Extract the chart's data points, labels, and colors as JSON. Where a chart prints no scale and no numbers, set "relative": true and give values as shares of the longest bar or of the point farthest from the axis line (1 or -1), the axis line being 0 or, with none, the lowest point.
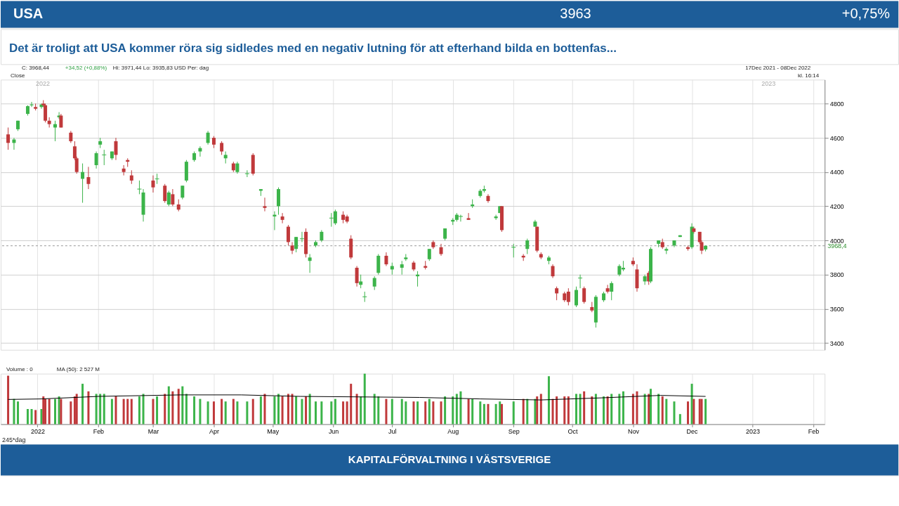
{
  "chart_data": [
    {
      "type": "candlestick",
      "title": "USA",
      "subtitle": "Det är troligt att USA kommer röra sig sidledes med en negativ lutning för att efterhand bilda en bottenfas...",
      "annotations": [
        "3963",
        "+0,75%",
        "C: 3968,44",
        "+34,52 (+0,88%)",
        "Hi: 3971,44  Lo: 3935,83  USD   Per: dag",
        "Close",
        "17Dec 2021 - 08Dec 2022",
        "kl. 16:14",
        "2022",
        "2023"
      ],
      "x": [
        "2021-12-17",
        "2021-12-20",
        "2021-12-22",
        "2021-12-27",
        "2021-12-29",
        "2021-12-31",
        "2022-01-03",
        "2022-01-04",
        "2022-01-05",
        "2022-01-07",
        "2022-01-10",
        "2022-01-12",
        "2022-01-13",
        "2022-01-18",
        "2022-01-20",
        "2022-01-21",
        "2022-01-24",
        "2022-01-27",
        "2022-01-31",
        "2022-02-02",
        "2022-02-04",
        "2022-02-08",
        "2022-02-10",
        "2022-02-14",
        "2022-02-16",
        "2022-02-18",
        "2022-02-22",
        "2022-02-24",
        "2022-03-01",
        "2022-03-03",
        "2022-03-07",
        "2022-03-09",
        "2022-03-11",
        "2022-03-14",
        "2022-03-16",
        "2022-03-18",
        "2022-03-22",
        "2022-03-25",
        "2022-03-29",
        "2022-04-01",
        "2022-04-05",
        "2022-04-07",
        "2022-04-11",
        "2022-04-13",
        "2022-04-18",
        "2022-04-21",
        "2022-04-25",
        "2022-04-27",
        "2022-05-02",
        "2022-05-04",
        "2022-05-06",
        "2022-05-09",
        "2022-05-11",
        "2022-05-13",
        "2022-05-16",
        "2022-05-18",
        "2022-05-20",
        "2022-05-23",
        "2022-05-26",
        "2022-05-31",
        "2022-06-02",
        "2022-06-06",
        "2022-06-08",
        "2022-06-10",
        "2022-06-13",
        "2022-06-15",
        "2022-06-17",
        "2022-06-22",
        "2022-06-24",
        "2022-06-28",
        "2022-07-01",
        "2022-07-06",
        "2022-07-08",
        "2022-07-12",
        "2022-07-14",
        "2022-07-18",
        "2022-07-20",
        "2022-07-22",
        "2022-07-26",
        "2022-07-28",
        "2022-08-01",
        "2022-08-03",
        "2022-08-05",
        "2022-08-09",
        "2022-08-11",
        "2022-08-15",
        "2022-08-17",
        "2022-08-19",
        "2022-08-23",
        "2022-08-25",
        "2022-08-26",
        "2022-09-01",
        "2022-09-06",
        "2022-09-08",
        "2022-09-12",
        "2022-09-13",
        "2022-09-15",
        "2022-09-19",
        "2022-09-21",
        "2022-09-23",
        "2022-09-27",
        "2022-09-29",
        "2022-10-03",
        "2022-10-05",
        "2022-10-07",
        "2022-10-11",
        "2022-10-13",
        "2022-10-17",
        "2022-10-19",
        "2022-10-21",
        "2022-10-25",
        "2022-10-27",
        "2022-11-01",
        "2022-11-03",
        "2022-11-07",
        "2022-11-09",
        "2022-11-10",
        "2022-11-14",
        "2022-11-16",
        "2022-11-18",
        "2022-11-22",
        "2022-11-25",
        "2022-11-29",
        "2022-12-01",
        "2022-12-02",
        "2022-12-05",
        "2022-12-06",
        "2022-12-08"
      ],
      "ohlc": [
        [
          4620,
          4660,
          4530,
          4570
        ],
        [
          4570,
          4600,
          4530,
          4590
        ],
        [
          4650,
          4700,
          4640,
          4700
        ],
        [
          4740,
          4790,
          4730,
          4785
        ],
        [
          4790,
          4810,
          4780,
          4795
        ],
        [
          4780,
          4800,
          4760,
          4770
        ],
        [
          4780,
          4800,
          4770,
          4795
        ],
        [
          4800,
          4820,
          4780,
          4790
        ],
        [
          4790,
          4800,
          4690,
          4700
        ],
        [
          4700,
          4720,
          4660,
          4680
        ],
        [
          4660,
          4700,
          4580,
          4680
        ],
        [
          4720,
          4750,
          4710,
          4730
        ],
        [
          4730,
          4740,
          4660,
          4660
        ],
        [
          4630,
          4640,
          4570,
          4580
        ],
        [
          4550,
          4580,
          4470,
          4480
        ],
        [
          4480,
          4490,
          4390,
          4400
        ],
        [
          4360,
          4450,
          4220,
          4400
        ],
        [
          4370,
          4430,
          4300,
          4330
        ],
        [
          4440,
          4520,
          4420,
          4510
        ],
        [
          4560,
          4600,
          4540,
          4580
        ],
        [
          4500,
          4530,
          4440,
          4500
        ],
        [
          4480,
          4520,
          4470,
          4520
        ],
        [
          4580,
          4600,
          4470,
          4500
        ],
        [
          4420,
          4440,
          4380,
          4400
        ],
        [
          4470,
          4480,
          4430,
          4460
        ],
        [
          4380,
          4410,
          4330,
          4350
        ],
        [
          4300,
          4350,
          4270,
          4300
        ],
        [
          4150,
          4300,
          4110,
          4280
        ],
        [
          4350,
          4380,
          4280,
          4310
        ],
        [
          4360,
          4390,
          4330,
          4360
        ],
        [
          4320,
          4330,
          4220,
          4230
        ],
        [
          4210,
          4290,
          4200,
          4280
        ],
        [
          4270,
          4300,
          4200,
          4210
        ],
        [
          4210,
          4240,
          4170,
          4180
        ],
        [
          4250,
          4320,
          4240,
          4320
        ],
        [
          4350,
          4470,
          4340,
          4460
        ],
        [
          4470,
          4520,
          4460,
          4510
        ],
        [
          4520,
          4550,
          4490,
          4540
        ],
        [
          4570,
          4640,
          4560,
          4630
        ],
        [
          4600,
          4610,
          4540,
          4560
        ],
        [
          4570,
          4580,
          4500,
          4520
        ],
        [
          4480,
          4520,
          4450,
          4500
        ],
        [
          4450,
          4460,
          4400,
          4410
        ],
        [
          4400,
          4460,
          4390,
          4450
        ],
        [
          4390,
          4410,
          4370,
          4390
        ],
        [
          4500,
          4510,
          4380,
          4390
        ],
        [
          4290,
          4300,
          4260,
          4300
        ],
        [
          4200,
          4250,
          4170,
          4190
        ],
        [
          4140,
          4170,
          4060,
          4150
        ],
        [
          4200,
          4310,
          4150,
          4300
        ],
        [
          4140,
          4160,
          4100,
          4120
        ],
        [
          4080,
          4090,
          3970,
          3990
        ],
        [
          3970,
          3990,
          3920,
          3940
        ],
        [
          3950,
          4020,
          3930,
          4020
        ],
        [
          4010,
          4050,
          3990,
          4010
        ],
        [
          4050,
          4070,
          3900,
          3920
        ],
        [
          3880,
          3920,
          3810,
          3900
        ],
        [
          3970,
          4000,
          3960,
          3990
        ],
        [
          4000,
          4060,
          3990,
          4050
        ],
        [
          4130,
          4160,
          4080,
          4130
        ],
        [
          4100,
          4180,
          4090,
          4170
        ],
        [
          4150,
          4170,
          4100,
          4120
        ],
        [
          4140,
          4150,
          4100,
          4110
        ],
        [
          4010,
          4030,
          3890,
          3900
        ],
        [
          3840,
          3850,
          3730,
          3750
        ],
        [
          3740,
          3800,
          3720,
          3760
        ],
        [
          3670,
          3700,
          3640,
          3670
        ],
        [
          3730,
          3790,
          3710,
          3780
        ],
        [
          3810,
          3920,
          3800,
          3910
        ],
        [
          3910,
          3930,
          3850,
          3860
        ],
        [
          3830,
          3870,
          3800,
          3850
        ],
        [
          3840,
          3880,
          3800,
          3860
        ],
        [
          3890,
          3920,
          3880,
          3900
        ],
        [
          3870,
          3880,
          3820,
          3830
        ],
        [
          3790,
          3820,
          3730,
          3800
        ],
        [
          3850,
          3880,
          3830,
          3840
        ],
        [
          3890,
          3950,
          3880,
          3950
        ],
        [
          3990,
          4000,
          3950,
          3960
        ],
        [
          3960,
          3980,
          3910,
          3920
        ],
        [
          4010,
          4070,
          4000,
          4070
        ],
        [
          4110,
          4130,
          4090,
          4120
        ],
        [
          4120,
          4160,
          4110,
          4150
        ],
        [
          4140,
          4150,
          4110,
          4140
        ],
        [
          4130,
          4160,
          4120,
          4120
        ],
        [
          4200,
          4240,
          4190,
          4210
        ],
        [
          4260,
          4300,
          4250,
          4290
        ],
        [
          4290,
          4320,
          4280,
          4300
        ],
        [
          4260,
          4270,
          4220,
          4230
        ],
        [
          4130,
          4150,
          4120,
          4140
        ],
        [
          4160,
          4200,
          4160,
          4200
        ],
        [
          4200,
          4200,
          4050,
          4060
        ],
        [
          3960,
          3980,
          3900,
          3960
        ],
        [
          3910,
          3920,
          3880,
          3900
        ],
        [
          3950,
          4010,
          3920,
          4000
        ],
        [
          4080,
          4120,
          4080,
          4110
        ],
        [
          4080,
          4080,
          3930,
          3940
        ],
        [
          3920,
          3930,
          3890,
          3900
        ],
        [
          3880,
          3910,
          3860,
          3900
        ],
        [
          3850,
          3860,
          3780,
          3790
        ],
        [
          3720,
          3730,
          3650,
          3690
        ],
        [
          3690,
          3700,
          3640,
          3650
        ],
        [
          3700,
          3720,
          3620,
          3640
        ],
        [
          3620,
          3730,
          3610,
          3710
        ],
        [
          3780,
          3800,
          3720,
          3780
        ],
        [
          3720,
          3730,
          3630,
          3640
        ],
        [
          3610,
          3640,
          3580,
          3590
        ],
        [
          3520,
          3680,
          3490,
          3670
        ],
        [
          3650,
          3700,
          3640,
          3690
        ],
        [
          3720,
          3740,
          3690,
          3700
        ],
        [
          3700,
          3760,
          3650,
          3750
        ],
        [
          3800,
          3860,
          3790,
          3850
        ],
        [
          3830,
          3880,
          3820,
          3840
        ],
        [
          3880,
          3900,
          3850,
          3860
        ],
        [
          3830,
          3860,
          3700,
          3720
        ],
        [
          3760,
          3800,
          3740,
          3790
        ],
        [
          3810,
          3820,
          3740,
          3760
        ],
        [
          3760,
          3960,
          3750,
          3950
        ],
        [
          3980,
          4000,
          3960,
          4000
        ],
        [
          3990,
          4010,
          3950,
          3960
        ],
        [
          3940,
          3960,
          3920,
          3950
        ],
        [
          3970,
          4000,
          3960,
          4000
        ],
        [
          4020,
          4030,
          4020,
          4030
        ],
        [
          3960,
          3970,
          3940,
          3950
        ],
        [
          3960,
          4100,
          3950,
          4080
        ],
        [
          4070,
          4080,
          4040,
          4050
        ],
        [
          4050,
          4050,
          3980,
          3990
        ],
        [
          3990,
          4000,
          3920,
          3940
        ],
        [
          3947,
          3971.44,
          3935.83,
          3968.44
        ]
      ],
      "colors": [
        "#c0393b",
        "#3cb44a",
        "#3cb44a",
        "#3cb44a",
        "#3cb44a",
        "#c0393b",
        "#3cb44a",
        "#c0393b",
        "#c0393b",
        "#c0393b",
        "#3cb44a",
        "#3cb44a",
        "#c0393b",
        "#c0393b",
        "#c0393b",
        "#c0393b",
        "#3cb44a",
        "#c0393b",
        "#3cb44a",
        "#3cb44a",
        "#3cb44a",
        "#3cb44a",
        "#c0393b",
        "#c0393b",
        "#c0393b",
        "#c0393b",
        "#3cb44a",
        "#3cb44a",
        "#c0393b",
        "#3cb44a",
        "#c0393b",
        "#3cb44a",
        "#c0393b",
        "#c0393b",
        "#3cb44a",
        "#3cb44a",
        "#3cb44a",
        "#3cb44a",
        "#3cb44a",
        "#c0393b",
        "#c0393b",
        "#3cb44a",
        "#c0393b",
        "#3cb44a",
        "#3cb44a",
        "#c0393b",
        "#3cb44a",
        "#c0393b",
        "#3cb44a",
        "#3cb44a",
        "#c0393b",
        "#c0393b",
        "#c0393b",
        "#3cb44a",
        "#3cb44a",
        "#c0393b",
        "#3cb44a",
        "#3cb44a",
        "#3cb44a",
        "#3cb44a",
        "#3cb44a",
        "#c0393b",
        "#c0393b",
        "#c0393b",
        "#c0393b",
        "#3cb44a",
        "#3cb44a",
        "#3cb44a",
        "#3cb44a",
        "#c0393b",
        "#3cb44a",
        "#3cb44a",
        "#3cb44a",
        "#c0393b",
        "#3cb44a",
        "#c0393b",
        "#3cb44a",
        "#c0393b",
        "#c0393b",
        "#3cb44a",
        "#3cb44a",
        "#3cb44a",
        "#3cb44a",
        "#c0393b",
        "#3cb44a",
        "#3cb44a",
        "#3cb44a",
        "#c0393b",
        "#3cb44a",
        "#3cb44a",
        "#c0393b",
        "#3cb44a",
        "#c0393b",
        "#3cb44a",
        "#3cb44a",
        "#c0393b",
        "#c0393b",
        "#3cb44a",
        "#c0393b",
        "#c0393b",
        "#c0393b",
        "#c0393b",
        "#3cb44a",
        "#3cb44a",
        "#c0393b",
        "#c0393b",
        "#3cb44a",
        "#3cb44a",
        "#c0393b",
        "#3cb44a",
        "#3cb44a",
        "#3cb44a",
        "#c0393b",
        "#c0393b",
        "#3cb44a",
        "#c0393b",
        "#3cb44a",
        "#3cb44a",
        "#c0393b",
        "#3cb44a",
        "#3cb44a",
        "#3cb44a",
        "#c0393b",
        "#3cb44a",
        "#c0393b",
        "#c0393b",
        "#c0393b",
        "#3cb44a"
      ],
      "xlim": [
        "2021-12-15",
        "2023-02-05"
      ],
      "xticks": [
        {
          "value": "2022-01-01",
          "label": null
        },
        {
          "value": "2022-02-01",
          "label": null
        },
        {
          "value": "2022-03-01",
          "label": null
        },
        {
          "value": "2022-04-01",
          "label": null
        },
        {
          "value": "2022-05-01",
          "label": null
        },
        {
          "value": "2022-06-01",
          "label": null
        },
        {
          "value": "2022-07-01",
          "label": null
        },
        {
          "value": "2022-08-01",
          "label": null
        },
        {
          "value": "2022-09-01",
          "label": null
        },
        {
          "value": "2022-10-01",
          "label": null
        },
        {
          "value": "2022-11-01",
          "label": null
        },
        {
          "value": "2022-12-01",
          "label": null
        },
        {
          "value": "2023-01-01",
          "label": null
        },
        {
          "value": "2023-02-01",
          "label": null
        }
      ],
      "ylim": [
        3360,
        4940
      ],
      "yticks": [
        3400,
        3600,
        3800,
        4000,
        4200,
        4400,
        4600,
        4800
      ],
      "tick_labels": "y",
      "grid": true,
      "ref_lines": [
        {
          "axis": "y",
          "value": 3968.4,
          "label": "3968,4",
          "color": "#999999",
          "line_style": "dashed"
        }
      ]
    },
    {
      "type": "bar",
      "relative": true,
      "tick_labels": "x",
      "grid": "x",
      "annotations": [
        "Volume : 0",
        "MA (50): 2 527 M",
        "245*dag",
        "KAPITALFÖRVALTNING I VÄSTSVERIGE"
      ],
      "x": [
        "2021-12-17",
        "2021-12-20",
        "2021-12-22",
        "2021-12-27",
        "2021-12-29",
        "2021-12-31",
        "2022-01-03",
        "2022-01-04",
        "2022-01-05",
        "2022-01-07",
        "2022-01-10",
        "2022-01-12",
        "2022-01-13",
        "2022-01-18",
        "2022-01-20",
        "2022-01-21",
        "2022-01-24",
        "2022-01-27",
        "2022-01-31",
        "2022-02-02",
        "2022-02-04",
        "2022-02-08",
        "2022-02-10",
        "2022-02-14",
        "2022-02-16",
        "2022-02-18",
        "2022-02-22",
        "2022-02-24",
        "2022-03-01",
        "2022-03-03",
        "2022-03-07",
        "2022-03-09",
        "2022-03-11",
        "2022-03-14",
        "2022-03-16",
        "2022-03-18",
        "2022-03-22",
        "2022-03-25",
        "2022-03-29",
        "2022-04-01",
        "2022-04-05",
        "2022-04-07",
        "2022-04-11",
        "2022-04-13",
        "2022-04-18",
        "2022-04-21",
        "2022-04-25",
        "2022-04-27",
        "2022-05-02",
        "2022-05-04",
        "2022-05-06",
        "2022-05-09",
        "2022-05-11",
        "2022-05-13",
        "2022-05-16",
        "2022-05-18",
        "2022-05-20",
        "2022-05-23",
        "2022-05-26",
        "2022-05-31",
        "2022-06-02",
        "2022-06-06",
        "2022-06-08",
        "2022-06-10",
        "2022-06-13",
        "2022-06-15",
        "2022-06-17",
        "2022-06-22",
        "2022-06-24",
        "2022-06-28",
        "2022-07-01",
        "2022-07-06",
        "2022-07-08",
        "2022-07-12",
        "2022-07-14",
        "2022-07-18",
        "2022-07-20",
        "2022-07-22",
        "2022-07-26",
        "2022-07-28",
        "2022-08-01",
        "2022-08-03",
        "2022-08-05",
        "2022-08-09",
        "2022-08-11",
        "2022-08-15",
        "2022-08-17",
        "2022-08-19",
        "2022-08-23",
        "2022-08-25",
        "2022-08-26",
        "2022-09-01",
        "2022-09-06",
        "2022-09-08",
        "2022-09-12",
        "2022-09-13",
        "2022-09-15",
        "2022-09-19",
        "2022-09-21",
        "2022-09-23",
        "2022-09-27",
        "2022-09-29",
        "2022-10-03",
        "2022-10-05",
        "2022-10-07",
        "2022-10-11",
        "2022-10-13",
        "2022-10-17",
        "2022-10-19",
        "2022-10-21",
        "2022-10-25",
        "2022-10-27",
        "2022-11-01",
        "2022-11-03",
        "2022-11-07",
        "2022-11-09",
        "2022-11-10",
        "2022-11-14",
        "2022-11-16",
        "2022-11-18",
        "2022-11-22",
        "2022-11-25",
        "2022-11-29",
        "2022-12-01",
        "2022-12-02",
        "2022-12-05",
        "2022-12-06",
        "2022-12-08"
      ],
      "series": [
        {
          "type": "bar",
          "colors": [
            "#c0393b",
            "#3cb44a",
            "#3cb44a",
            "#3cb44a",
            "#3cb44a",
            "#c0393b",
            "#3cb44a",
            "#c0393b",
            "#c0393b",
            "#c0393b",
            "#3cb44a",
            "#3cb44a",
            "#c0393b",
            "#c0393b",
            "#c0393b",
            "#c0393b",
            "#3cb44a",
            "#c0393b",
            "#3cb44a",
            "#3cb44a",
            "#3cb44a",
            "#3cb44a",
            "#c0393b",
            "#c0393b",
            "#c0393b",
            "#c0393b",
            "#3cb44a",
            "#3cb44a",
            "#c0393b",
            "#3cb44a",
            "#c0393b",
            "#3cb44a",
            "#c0393b",
            "#c0393b",
            "#3cb44a",
            "#3cb44a",
            "#3cb44a",
            "#3cb44a",
            "#3cb44a",
            "#c0393b",
            "#c0393b",
            "#3cb44a",
            "#c0393b",
            "#3cb44a",
            "#3cb44a",
            "#c0393b",
            "#3cb44a",
            "#c0393b",
            "#3cb44a",
            "#3cb44a",
            "#c0393b",
            "#c0393b",
            "#c0393b",
            "#3cb44a",
            "#3cb44a",
            "#c0393b",
            "#3cb44a",
            "#3cb44a",
            "#3cb44a",
            "#3cb44a",
            "#3cb44a",
            "#c0393b",
            "#c0393b",
            "#c0393b",
            "#c0393b",
            "#3cb44a",
            "#3cb44a",
            "#3cb44a",
            "#3cb44a",
            "#c0393b",
            "#3cb44a",
            "#3cb44a",
            "#3cb44a",
            "#c0393b",
            "#3cb44a",
            "#c0393b",
            "#3cb44a",
            "#c0393b",
            "#c0393b",
            "#3cb44a",
            "#3cb44a",
            "#3cb44a",
            "#3cb44a",
            "#c0393b",
            "#3cb44a",
            "#3cb44a",
            "#3cb44a",
            "#c0393b",
            "#3cb44a",
            "#3cb44a",
            "#c0393b",
            "#3cb44a",
            "#c0393b",
            "#3cb44a",
            "#3cb44a",
            "#c0393b",
            "#c0393b",
            "#3cb44a",
            "#c0393b",
            "#c0393b",
            "#c0393b",
            "#c0393b",
            "#3cb44a",
            "#3cb44a",
            "#c0393b",
            "#c0393b",
            "#3cb44a",
            "#3cb44a",
            "#c0393b",
            "#3cb44a",
            "#3cb44a",
            "#3cb44a",
            "#c0393b",
            "#c0393b",
            "#3cb44a",
            "#c0393b",
            "#3cb44a",
            "#3cb44a",
            "#c0393b",
            "#3cb44a",
            "#3cb44a",
            "#3cb44a",
            "#c0393b",
            "#3cb44a",
            "#c0393b",
            "#c0393b",
            "#c0393b",
            "#3cb44a"
          ],
          "values": [
            0.96,
            0.5,
            0.45,
            0.3,
            0.3,
            0.28,
            0.3,
            0.55,
            0.5,
            0.5,
            0.5,
            0.55,
            0.5,
            0.45,
            0.55,
            0.6,
            0.8,
            0.65,
            0.6,
            0.6,
            0.6,
            0.5,
            0.55,
            0.5,
            0.5,
            0.5,
            0.55,
            0.6,
            0.5,
            0.55,
            0.6,
            0.75,
            0.65,
            0.7,
            0.75,
            0.6,
            0.55,
            0.5,
            0.45,
            0.45,
            0.5,
            0.45,
            0.5,
            0.45,
            0.45,
            0.5,
            0.55,
            0.6,
            0.55,
            0.6,
            0.55,
            0.6,
            0.6,
            0.55,
            0.5,
            0.55,
            0.6,
            0.45,
            0.45,
            0.45,
            0.5,
            0.45,
            0.45,
            0.8,
            0.6,
            0.55,
            1.0,
            0.6,
            0.55,
            0.5,
            0.5,
            0.5,
            0.45,
            0.45,
            0.45,
            0.45,
            0.5,
            0.45,
            0.45,
            0.55,
            0.55,
            0.6,
            0.65,
            0.5,
            0.5,
            0.45,
            0.4,
            0.4,
            0.4,
            0.45,
            0.4,
            0.45,
            0.5,
            0.5,
            0.5,
            0.55,
            0.6,
            0.95,
            0.5,
            0.55,
            0.55,
            0.55,
            0.6,
            0.6,
            0.65,
            0.55,
            0.6,
            0.55,
            0.55,
            0.6,
            0.6,
            0.65,
            0.6,
            0.65,
            0.6,
            0.6,
            0.7,
            0.6,
            0.55,
            0.5,
            0.45,
            0.2,
            0.45,
            0.8,
            0.5,
            0.5,
            0.5,
            0.5
          ]
        },
        {
          "type": "line",
          "color": "#000000",
          "x": [
            "2021-12-17",
            "2022-01-03",
            "2022-02-01",
            "2022-03-15",
            "2022-04-15",
            "2022-05-15",
            "2022-06-15",
            "2022-07-15",
            "2022-08-15",
            "2022-09-15",
            "2022-10-15",
            "2022-11-15",
            "2022-12-08"
          ],
          "values": [
            0.49,
            0.5,
            0.55,
            0.58,
            0.58,
            0.55,
            0.54,
            0.53,
            0.5,
            0.48,
            0.52,
            0.57,
            0.55
          ]
        }
      ],
      "xlim": [
        "2021-12-15",
        "2023-02-05"
      ],
      "xticks": [
        {
          "value": "2022-01-01",
          "label": "2022"
        },
        {
          "value": "2022-02-01",
          "label": "Feb"
        },
        {
          "value": "2022-03-01",
          "label": "Mar"
        },
        {
          "value": "2022-04-01",
          "label": "Apr"
        },
        {
          "value": "2022-05-01",
          "label": "May"
        },
        {
          "value": "2022-06-01",
          "label": "Jun"
        },
        {
          "value": "2022-07-01",
          "label": "Jul"
        },
        {
          "value": "2022-08-01",
          "label": "Aug"
        },
        {
          "value": "2022-09-01",
          "label": "Sep"
        },
        {
          "value": "2022-10-01",
          "label": "Oct"
        },
        {
          "value": "2022-11-01",
          "label": "Nov"
        },
        {
          "value": "2022-12-01",
          "label": "Dec"
        },
        {
          "value": "2023-01-01",
          "label": "2023"
        },
        {
          "value": "2023-02-01",
          "label": "Feb"
        }
      ]
    }
  ]
}
